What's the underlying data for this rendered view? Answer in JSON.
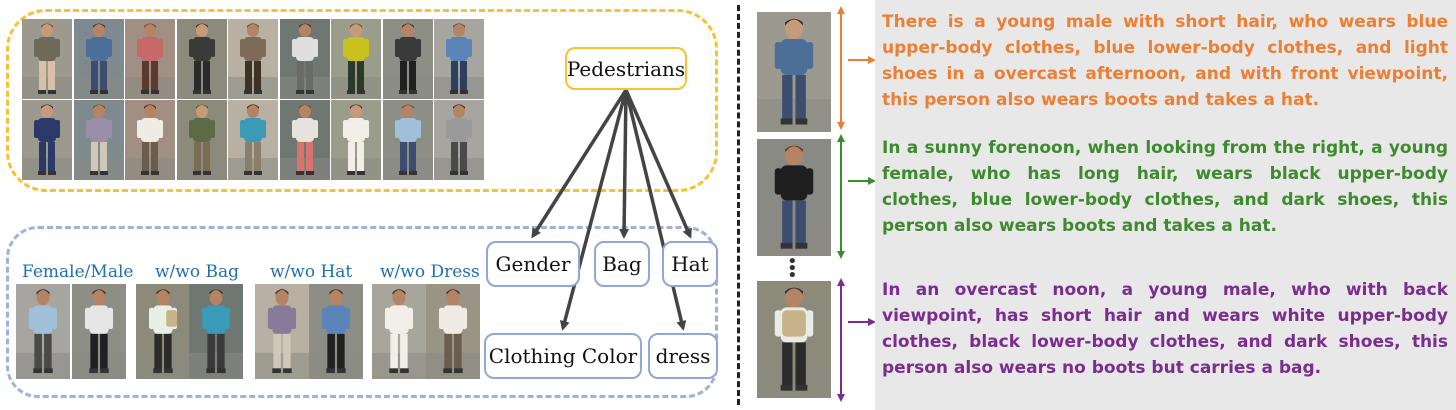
{
  "root_label": "Pedestrians",
  "attributes": [
    "Gender",
    "Bag",
    "Hat",
    "Clothing Color",
    "dress"
  ],
  "attribute_examples": [
    "Female/Male",
    "w/wo Bag",
    "w/wo Hat",
    "w/wo Dress"
  ],
  "descriptions": [
    {
      "text": "There is a young male with short hair, who wears blue upper-body clothes, blue lower-body clothes, and light shoes in a overcast afternoon, and with front viewpoint, this person also wears boots and takes a hat.",
      "color": "#ec7f33"
    },
    {
      "text": "In a sunny forenoon, when looking from the right, a young female, who has long hair, wears black upper-body clothes, blue lower-body clothes, and dark shoes, this person also wears boots and takes a hat.",
      "color": "#3e8a2e"
    },
    {
      "text": "In an overcast noon, a young male, who with back viewpoint, has short hair and wears white upper-body clothes, black lower-body clothes, and dark shoes, this person also wears no boots but carries a bag.",
      "color": "#7b2d8f"
    }
  ],
  "colors": {
    "pedestrian_group_border": "#f5c231",
    "attribute_group_border": "#9db3d9",
    "node_border": "#8fa7d3",
    "example_label": "#1f6fb0",
    "arrow": "#444444",
    "description_panel": "#e8e8e8"
  }
}
